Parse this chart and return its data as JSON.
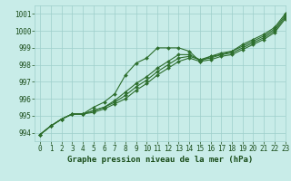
{
  "title": "Graphe pression niveau de la mer (hPa)",
  "background_color": "#c8ece8",
  "grid_color": "#9ecfcb",
  "line_color": "#2d6e2d",
  "xlim": [
    -0.5,
    23
  ],
  "ylim": [
    993.5,
    1001.5
  ],
  "yticks": [
    994,
    995,
    996,
    997,
    998,
    999,
    1000,
    1001
  ],
  "xticks": [
    0,
    1,
    2,
    3,
    4,
    5,
    6,
    7,
    8,
    9,
    10,
    11,
    12,
    13,
    14,
    15,
    16,
    17,
    18,
    19,
    20,
    21,
    22,
    23
  ],
  "series": [
    [
      993.9,
      994.4,
      994.8,
      995.1,
      995.1,
      995.5,
      995.8,
      996.3,
      997.4,
      998.1,
      998.4,
      999.0,
      999.0,
      999.0,
      998.8,
      998.2,
      998.5,
      998.6,
      998.8,
      999.2,
      999.5,
      999.8,
      1000.2,
      1001.0
    ],
    [
      993.9,
      994.4,
      994.8,
      995.1,
      995.1,
      995.3,
      995.5,
      995.9,
      996.4,
      996.9,
      997.3,
      997.8,
      998.2,
      998.6,
      998.6,
      998.3,
      998.5,
      998.7,
      998.8,
      999.1,
      999.4,
      999.7,
      1000.1,
      1000.9
    ],
    [
      993.9,
      994.4,
      994.8,
      995.1,
      995.1,
      995.3,
      995.5,
      995.8,
      996.2,
      996.7,
      997.1,
      997.6,
      998.0,
      998.4,
      998.5,
      998.3,
      998.4,
      998.6,
      998.7,
      999.0,
      999.3,
      999.6,
      1000.0,
      1000.8
    ],
    [
      993.9,
      994.4,
      994.8,
      995.1,
      995.1,
      995.2,
      995.4,
      995.7,
      996.0,
      996.5,
      996.9,
      997.4,
      997.8,
      998.2,
      998.4,
      998.2,
      998.3,
      998.5,
      998.6,
      998.9,
      999.2,
      999.5,
      999.9,
      1000.7
    ]
  ],
  "text_color": "#1a4d1a",
  "tick_fontsize": 5.5,
  "title_fontsize": 6.5,
  "figsize": [
    3.2,
    2.0
  ],
  "dpi": 100
}
